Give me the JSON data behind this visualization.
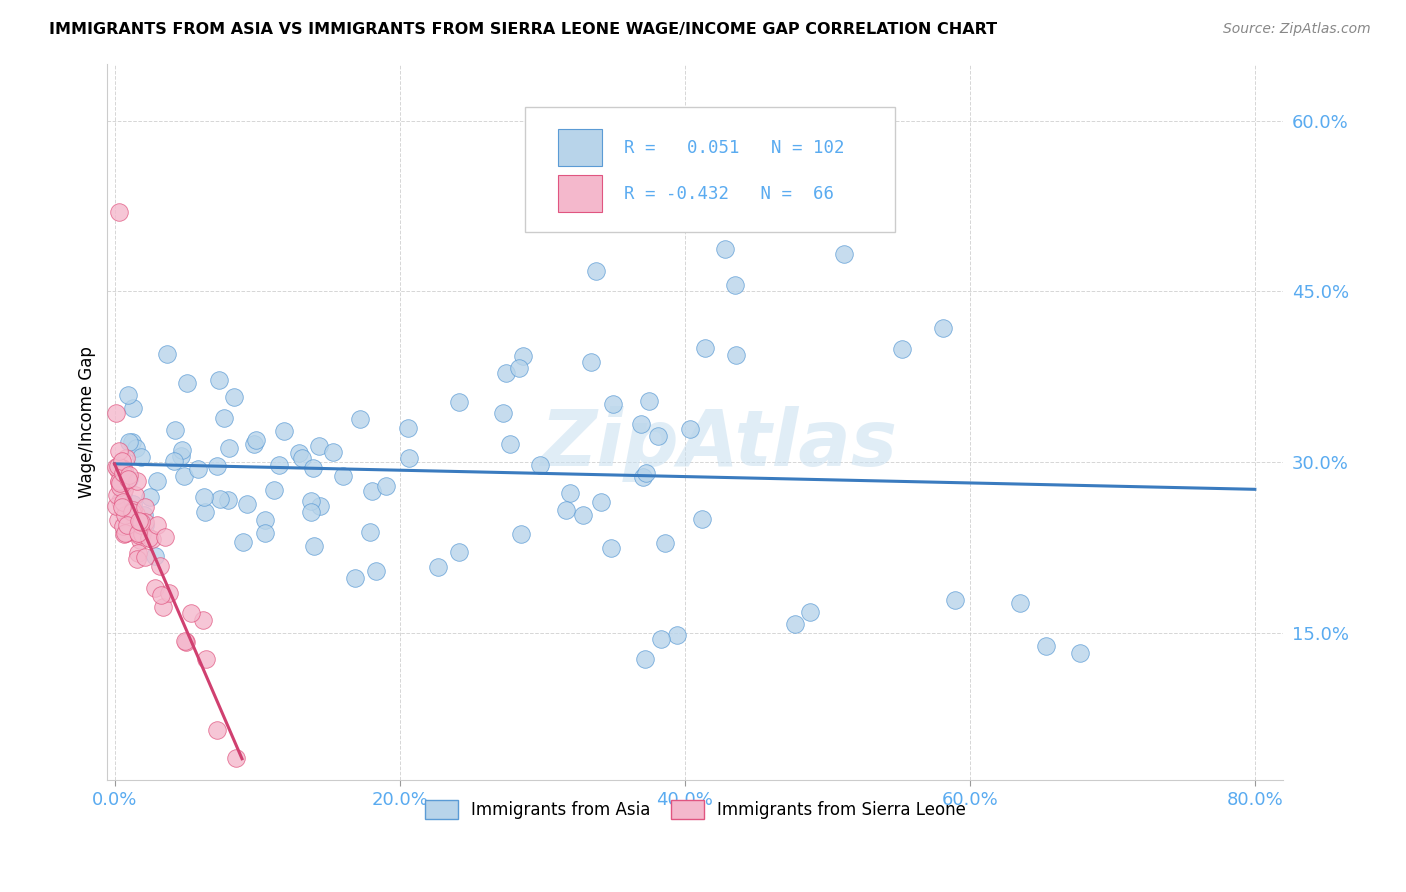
{
  "title": "IMMIGRANTS FROM ASIA VS IMMIGRANTS FROM SIERRA LEONE WAGE/INCOME GAP CORRELATION CHART",
  "source": "Source: ZipAtlas.com",
  "ylabel": "Wage/Income Gap",
  "legend_labels": [
    "Immigrants from Asia",
    "Immigrants from Sierra Leone"
  ],
  "R_asia": 0.051,
  "N_asia": 102,
  "R_sierra": -0.432,
  "N_sierra": 66,
  "color_asia_fill": "#b8d4ea",
  "color_asia_edge": "#5b9bd5",
  "color_sierra_fill": "#f4b8cc",
  "color_sierra_edge": "#e05580",
  "color_asia_line": "#3a7bbf",
  "color_sierra_line": "#d04070",
  "color_axis_labels": "#5aabf0",
  "watermark": "ZipAtlas",
  "xlim": [
    -0.005,
    0.82
  ],
  "ylim": [
    0.02,
    0.65
  ],
  "xticks": [
    0.0,
    0.2,
    0.4,
    0.6,
    0.8
  ],
  "yticks": [
    0.15,
    0.3,
    0.45,
    0.6
  ]
}
